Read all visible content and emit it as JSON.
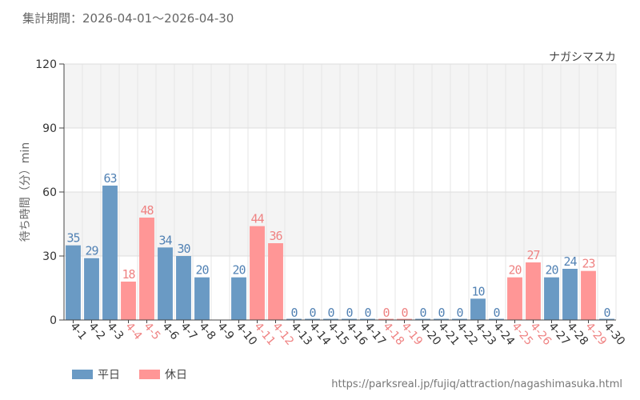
{
  "header": {
    "period": "集計期間：2026-04-01～2026-04-30"
  },
  "footer": {
    "source_url": "https://parksreal.jp/fujiq/attraction/nagashimasuka.html"
  },
  "colors": {
    "weekday": "#6a9ac4",
    "holiday": "#ff9696",
    "weekday_text": "#5282b4",
    "holiday_text": "#ef8282"
  },
  "chart_data": {
    "type": "bar",
    "title": "ナガシマスカ",
    "ylabel": "待ち時間（分）min",
    "xlabel": "",
    "ylim": [
      0,
      120
    ],
    "yticks": [
      0,
      30,
      60,
      90,
      120
    ],
    "grid": true,
    "legend_position": "bottom-left",
    "series": [
      {
        "name": "平日",
        "key": "weekday"
      },
      {
        "name": "休日",
        "key": "holiday"
      }
    ],
    "categories": [
      "4-1",
      "4-2",
      "4-3",
      "4-4",
      "4-5",
      "4-6",
      "4-7",
      "4-8",
      "4-9",
      "4-10",
      "4-11",
      "4-12",
      "4-13",
      "4-14",
      "4-15",
      "4-16",
      "4-17",
      "4-18",
      "4-19",
      "4-20",
      "4-21",
      "4-22",
      "4-23",
      "4-24",
      "4-25",
      "4-26",
      "4-27",
      "4-28",
      "4-29",
      "4-30"
    ],
    "values": [
      35,
      29,
      63,
      18,
      48,
      34,
      30,
      20,
      null,
      20,
      44,
      36,
      0,
      0,
      0,
      0,
      0,
      0,
      0,
      0,
      0,
      0,
      10,
      0,
      20,
      27,
      20,
      24,
      23,
      0
    ],
    "day_type": [
      "weekday",
      "weekday",
      "weekday",
      "holiday",
      "holiday",
      "weekday",
      "weekday",
      "weekday",
      "weekday",
      "weekday",
      "holiday",
      "holiday",
      "weekday",
      "weekday",
      "weekday",
      "weekday",
      "weekday",
      "holiday",
      "holiday",
      "weekday",
      "weekday",
      "weekday",
      "weekday",
      "weekday",
      "holiday",
      "holiday",
      "weekday",
      "weekday",
      "holiday",
      "weekday"
    ]
  }
}
